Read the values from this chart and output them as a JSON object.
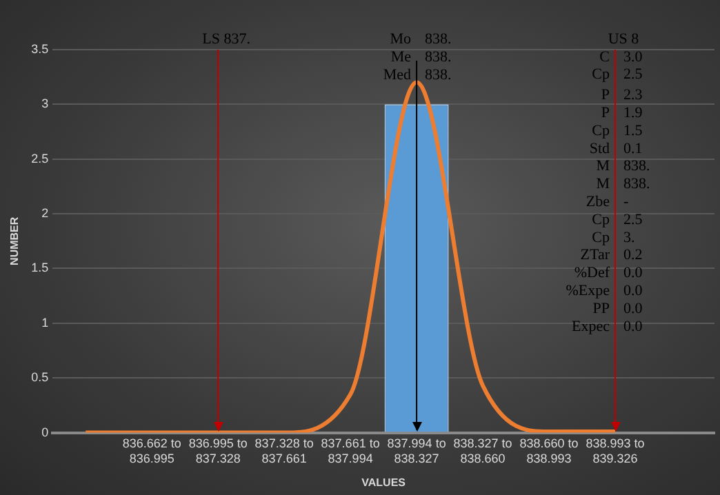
{
  "chart_data": {
    "type": "bar",
    "xlabel": "VALUES",
    "ylabel": "NUMBER",
    "categories": [
      null,
      "836.662 to 836.995",
      "836.995 to 837.328",
      "837.328 to 837.661",
      "837.661 to 837.994",
      "837.994 to 838.327",
      "838.327 to 838.660",
      "838.660 to 838.993",
      "838.993 to 839.326",
      null
    ],
    "values": [
      0,
      0,
      0,
      0,
      0,
      3,
      0,
      0,
      0,
      0
    ],
    "color": "#5b9bd5",
    "series": [
      {
        "type": "line",
        "color": "#ed7d31",
        "values": [
          0,
          0,
          0,
          0,
          0.35,
          3.2,
          0.43,
          0.01,
          0.01,
          null
        ]
      }
    ],
    "ylim": [
      0,
      3.5
    ],
    "yticks": [
      0,
      0.5,
      1,
      1.5,
      2,
      2.5,
      3,
      3.5
    ],
    "grid": "y",
    "marker": "none",
    "ref_lines": [
      {
        "axis": "x",
        "value": "836.995 to 837.328",
        "label": "LS 837.",
        "color": "#c00000"
      },
      {
        "axis": "x",
        "value": "837.994 to 838.327",
        "label": null,
        "color": "#000000"
      },
      {
        "axis": "x",
        "value": "838.993 to 839.326",
        "label": "US 8",
        "color": "#c00000"
      }
    ],
    "annotations": [
      "Mo 838.",
      "Me 838.",
      "Med 838.",
      "C 3.0",
      "Cp 2.5",
      "P 2.3",
      "P 1.9",
      "Cp 1.5",
      "Std 0.1",
      "M 838.",
      "M 838.",
      "Zbe -",
      "Cp 2.5",
      "Cp 3.",
      "ZTar 0.2",
      "%Def 0.0",
      "%Expe 0.0",
      "PP 0.0",
      "Expec 0.0"
    ]
  }
}
